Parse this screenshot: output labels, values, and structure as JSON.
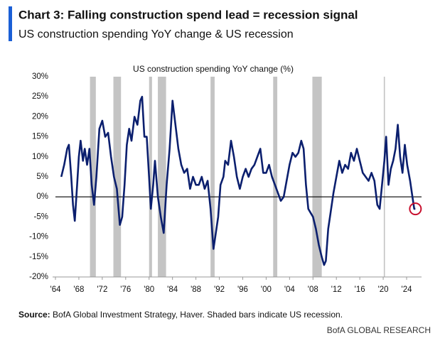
{
  "chart_data": {
    "type": "line",
    "title": "Chart 3: Falling construction spend lead = recession signal",
    "subtitle": "US construction spending YoY change & US recession",
    "series_label": "US construction spending YoY change (%)",
    "source_label": "Source:",
    "source_text": "BofA Global Investment Strategy, Haver. Shaded bars indicate US recession.",
    "footer": "BofA GLOBAL RESEARCH",
    "color": "#0b1f6e",
    "recession_color": "#c4c4c4",
    "recessions": [
      [
        1969.9,
        1970.9
      ],
      [
        1973.9,
        1975.2
      ],
      [
        1980.0,
        1980.5
      ],
      [
        1981.5,
        1982.9
      ],
      [
        1990.5,
        1991.2
      ],
      [
        2001.2,
        2001.9
      ],
      [
        2007.9,
        2009.5
      ],
      [
        2020.1,
        2020.3
      ]
    ],
    "x": [
      1965.0,
      1965.5,
      1966.0,
      1966.3,
      1966.7,
      1967.0,
      1967.3,
      1967.7,
      1968.0,
      1968.3,
      1968.7,
      1969.0,
      1969.4,
      1969.8,
      1970.2,
      1970.6,
      1971.0,
      1971.5,
      1972.0,
      1972.5,
      1973.0,
      1973.5,
      1974.0,
      1974.5,
      1975.0,
      1975.4,
      1975.8,
      1976.2,
      1976.6,
      1977.0,
      1977.5,
      1978.0,
      1978.5,
      1978.8,
      1979.2,
      1979.6,
      1980.0,
      1980.3,
      1980.7,
      1981.0,
      1981.5,
      1982.0,
      1982.5,
      1983.0,
      1983.5,
      1984.0,
      1984.5,
      1985.0,
      1985.5,
      1986.0,
      1986.5,
      1987.0,
      1987.5,
      1988.0,
      1988.5,
      1989.0,
      1989.5,
      1990.0,
      1990.5,
      1991.0,
      1991.3,
      1991.8,
      1992.2,
      1992.7,
      1993.0,
      1993.5,
      1994.0,
      1994.5,
      1995.0,
      1995.5,
      1996.0,
      1996.5,
      1997.0,
      1997.5,
      1998.0,
      1998.5,
      1999.0,
      1999.5,
      2000.0,
      2000.5,
      2001.0,
      2001.5,
      2002.0,
      2002.5,
      2003.0,
      2003.5,
      2004.0,
      2004.5,
      2005.0,
      2005.5,
      2006.0,
      2006.4,
      2006.8,
      2007.2,
      2007.6,
      2008.0,
      2008.5,
      2009.0,
      2009.5,
      2009.9,
      2010.2,
      2010.6,
      2011.0,
      2011.5,
      2012.0,
      2012.5,
      2013.0,
      2013.5,
      2014.0,
      2014.5,
      2015.0,
      2015.5,
      2016.0,
      2016.5,
      2017.0,
      2017.5,
      2018.0,
      2018.5,
      2019.0,
      2019.4,
      2019.8,
      2020.2,
      2020.5,
      2020.9,
      2021.3,
      2021.7,
      2022.1,
      2022.5,
      2022.9,
      2023.3,
      2023.7,
      2024.1,
      2024.6,
      2025.0,
      2025.3,
      2025.5
    ],
    "values": [
      5,
      8,
      12,
      13,
      5,
      -2,
      -6,
      3,
      10,
      14,
      9,
      12,
      8,
      12,
      3,
      -2,
      5,
      17,
      19,
      15,
      16,
      10,
      5,
      2,
      -7,
      -5,
      3,
      13,
      17,
      14,
      20,
      18,
      24,
      25,
      15,
      15,
      5,
      -3,
      3,
      9,
      0,
      -5,
      -9,
      3,
      12,
      24,
      18,
      12,
      8,
      6,
      7,
      2,
      5,
      3,
      3,
      5,
      2,
      4,
      -3,
      -13,
      -10,
      -5,
      3,
      5,
      9,
      8,
      14,
      10,
      5,
      2,
      5,
      7,
      5,
      7,
      8,
      10,
      12,
      6,
      6,
      8,
      5,
      3,
      1,
      -1,
      0,
      4,
      8,
      11,
      10,
      11,
      14,
      12,
      3,
      -3,
      -4,
      -5,
      -8,
      -12,
      -15,
      -17,
      -16,
      -8,
      -4,
      1,
      5,
      9,
      6,
      8,
      7,
      11,
      9,
      12,
      9,
      6,
      5,
      4,
      6,
      4,
      -2,
      -3,
      3,
      9,
      15,
      3,
      7,
      9,
      12,
      18,
      10,
      6,
      13,
      8,
      4,
      0,
      -3,
      -3
    ],
    "xlim": [
      1964,
      2026.5
    ],
    "ylim": [
      -20,
      30
    ],
    "xticks": [
      {
        "value": 1964,
        "label": "'64"
      },
      {
        "value": 1968,
        "label": "'68"
      },
      {
        "value": 1972,
        "label": "'72"
      },
      {
        "value": 1976,
        "label": "'76"
      },
      {
        "value": 1980,
        "label": "'80"
      },
      {
        "value": 1984,
        "label": "'84"
      },
      {
        "value": 1988,
        "label": "'88"
      },
      {
        "value": 1992,
        "label": "'92"
      },
      {
        "value": 1996,
        "label": "'96"
      },
      {
        "value": 2000,
        "label": "'00"
      },
      {
        "value": 2004,
        "label": "'04"
      },
      {
        "value": 2008,
        "label": "'08"
      },
      {
        "value": 2012,
        "label": "'12"
      },
      {
        "value": 2016,
        "label": "'16"
      },
      {
        "value": 2020,
        "label": "'20"
      },
      {
        "value": 2024,
        "label": "'24"
      }
    ],
    "yticks": [
      {
        "value": 30,
        "label": "30%"
      },
      {
        "value": 25,
        "label": "25%"
      },
      {
        "value": 20,
        "label": "20%"
      },
      {
        "value": 15,
        "label": "15%"
      },
      {
        "value": 10,
        "label": "10%"
      },
      {
        "value": 5,
        "label": "5%"
      },
      {
        "value": 0,
        "label": "0%"
      },
      {
        "value": -5,
        "label": "-5%"
      },
      {
        "value": -10,
        "label": "-10%"
      },
      {
        "value": -15,
        "label": "-15%"
      },
      {
        "value": -20,
        "label": "-20%"
      }
    ]
  }
}
